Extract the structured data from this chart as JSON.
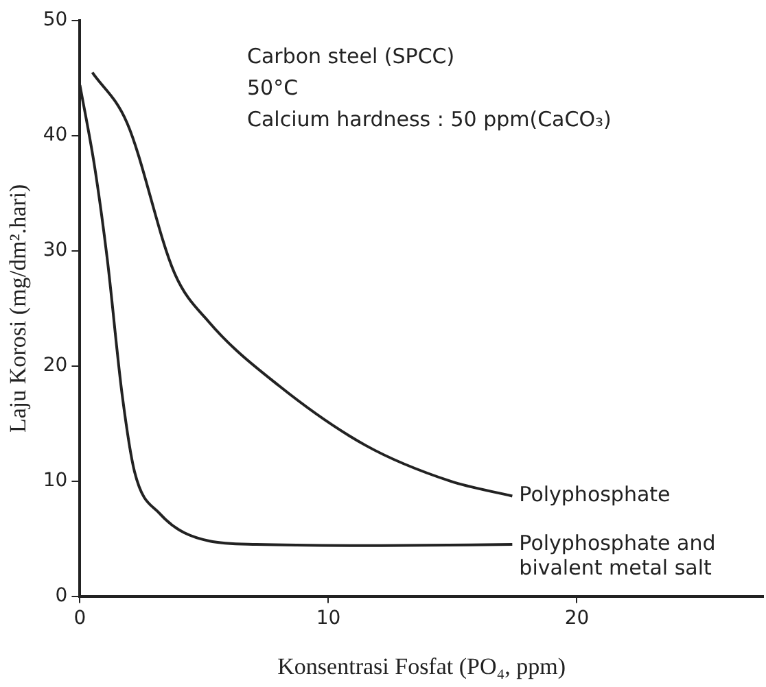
{
  "chart_data": {
    "type": "line",
    "xlabel": "Konsentrasi Fosfat (PO₄, ppm)",
    "ylabel": "Laju Korosi (mg/dm².hari)",
    "annotations": [
      "Carbon steel (SPCC)",
      "50°C",
      "Calcium hardness : 50 ppm(CaCO₃)"
    ],
    "xlim": [
      0,
      27.5
    ],
    "xticks": [
      0,
      10,
      20
    ],
    "ylim": [
      0,
      50
    ],
    "yticks": [
      0,
      10,
      20,
      30,
      40,
      50
    ],
    "grid": false,
    "legend": false,
    "marker": "none",
    "line_style": "solid",
    "series": [
      {
        "name": "Polyphosphate",
        "color": "#222222",
        "x": [
          0.5,
          1.9,
          3.8,
          5.2,
          8.0,
          11.5,
          14.9,
          17.4
        ],
        "values": [
          45.5,
          41.1,
          28.1,
          23.8,
          18.3,
          13.1,
          10.0,
          8.7
        ]
      },
      {
        "name": "Polyphosphate and bivalent metal salt",
        "color": "#222222",
        "x": [
          0,
          0.6,
          1.1,
          1.7,
          2.2,
          3.2,
          5.2,
          7.1,
          12,
          17.4
        ],
        "values": [
          44.4,
          37.2,
          29.3,
          17.5,
          10.8,
          7.2,
          4.8,
          4.5,
          4.4,
          4.5
        ]
      }
    ]
  }
}
